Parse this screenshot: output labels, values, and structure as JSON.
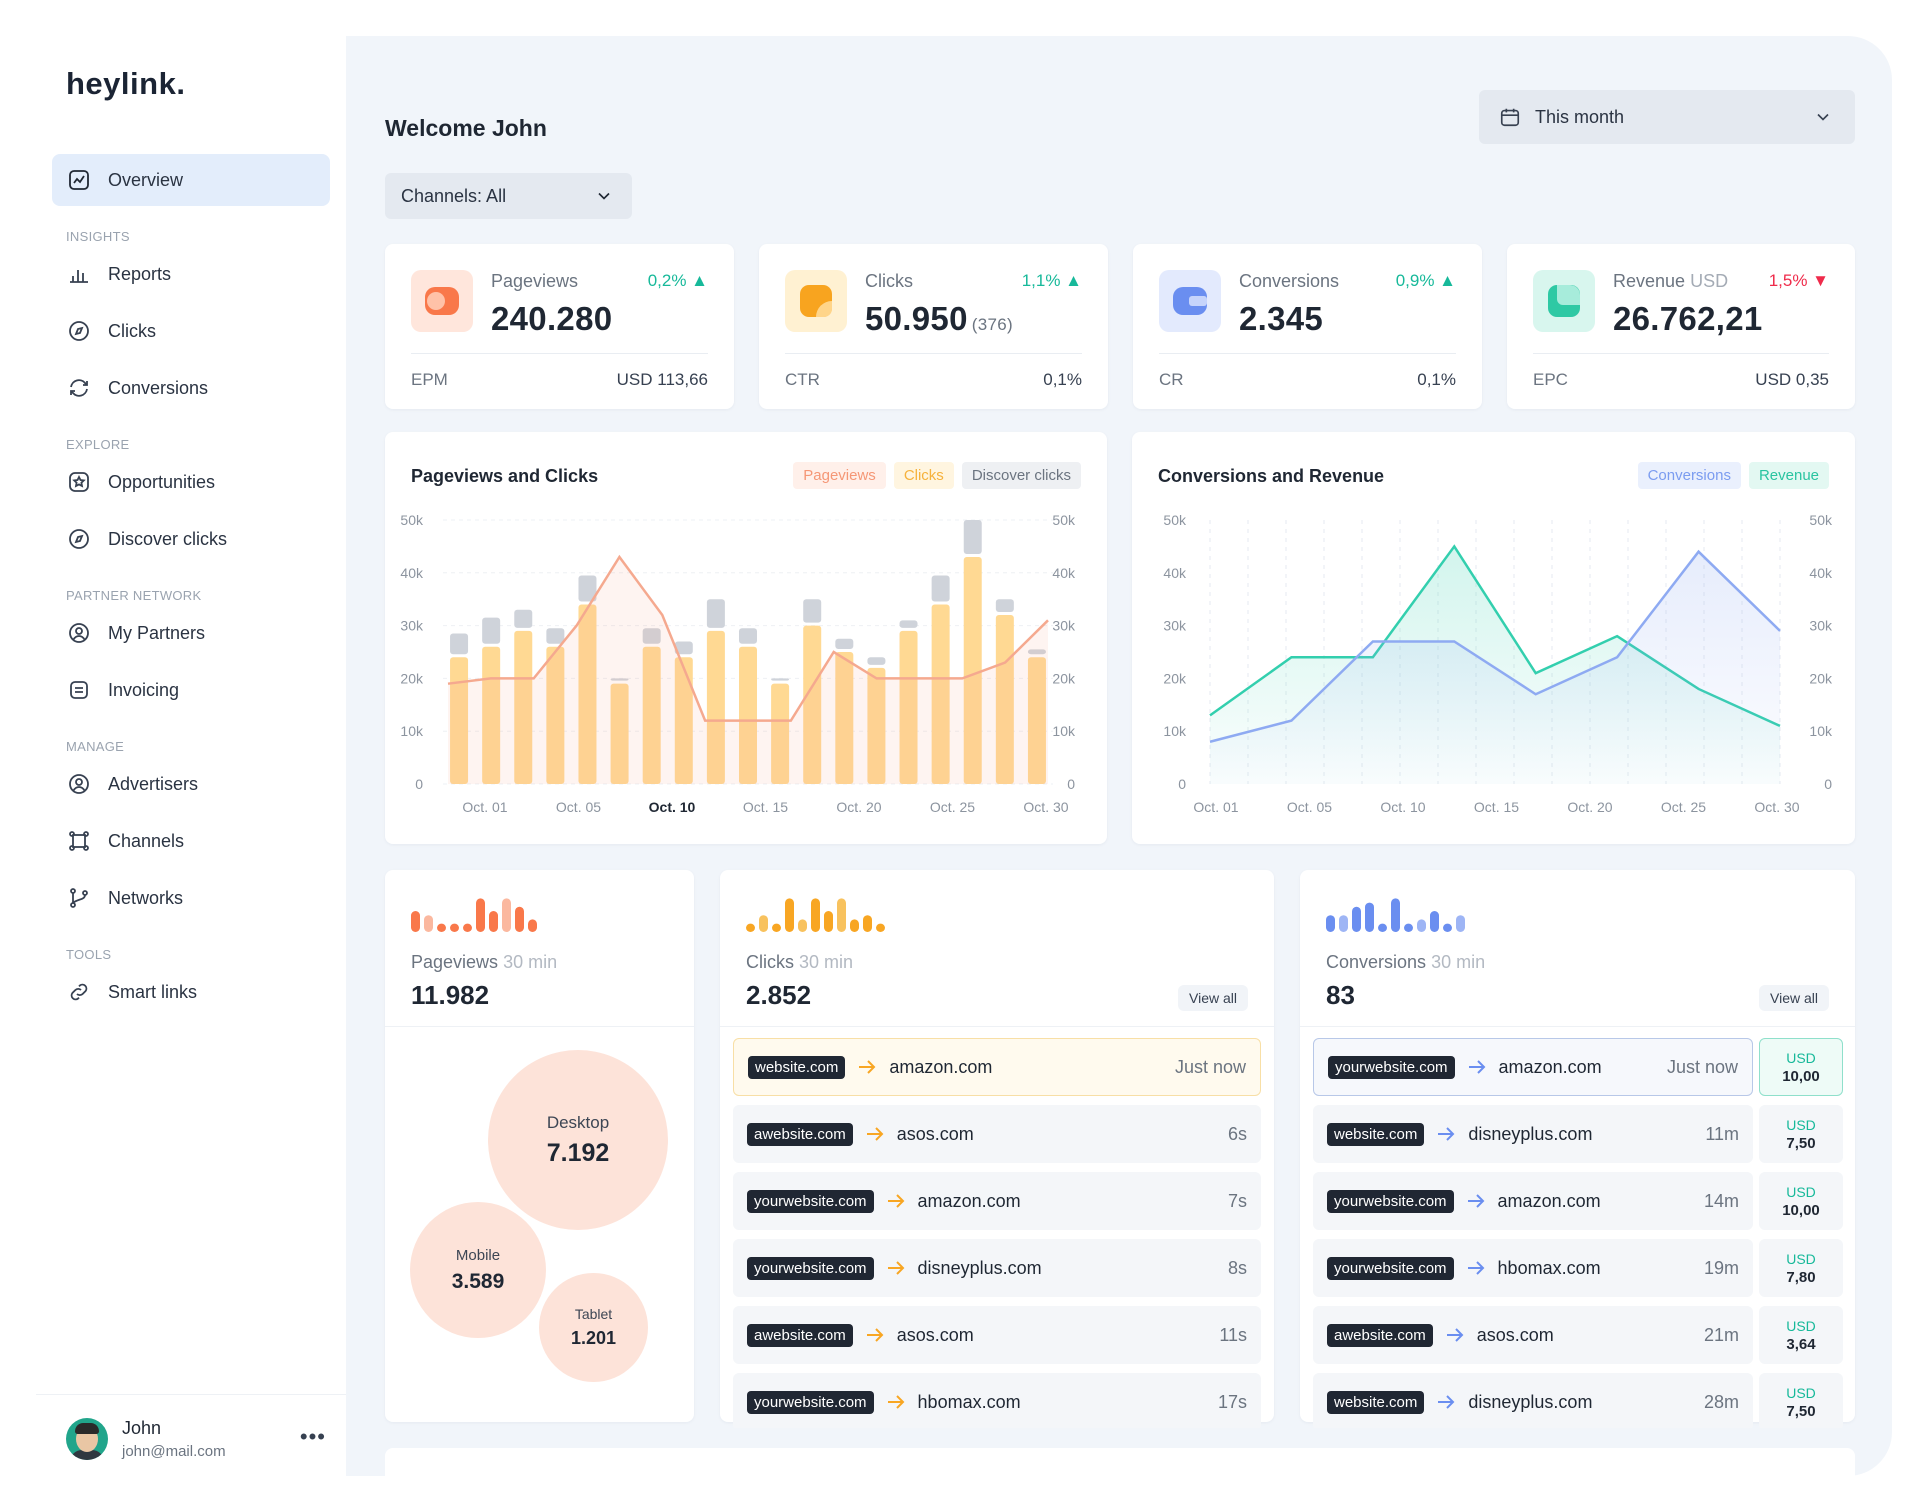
{
  "brand": "heylink.",
  "sidebar": {
    "overview": "Overview",
    "sections": {
      "insights": "INSIGHTS",
      "explore": "EXPLORE",
      "partner_network": "PARTNER NETWORK",
      "manage": "MANAGE",
      "tools": "TOOLS"
    },
    "items": {
      "reports": "Reports",
      "clicks": "Clicks",
      "conversions": "Conversions",
      "opportunities": "Opportunities",
      "discover_clicks": "Discover clicks",
      "my_partners": "My Partners",
      "invoicing": "Invoicing",
      "advertisers": "Advertisers",
      "channels": "Channels",
      "networks": "Networks",
      "smart_links": "Smart links"
    }
  },
  "user": {
    "name": "John",
    "email": "john@mail.com"
  },
  "header": {
    "welcome": "Welcome John",
    "channels_filter": "Channels: All",
    "date_range": "This month"
  },
  "kpis": {
    "pageviews": {
      "label": "Pageviews",
      "value": "240.280",
      "change": "0,2%",
      "sub_label": "EPM",
      "sub_value": "USD 113,66",
      "color": "#f97b4e"
    },
    "clicks": {
      "label": "Clicks",
      "value": "50.950",
      "value_extra": "(376)",
      "change": "1,1%",
      "sub_label": "CTR",
      "sub_value": "0,1%",
      "color": "#f8a623"
    },
    "conversions": {
      "label": "Conversions",
      "value": "2.345",
      "change": "0,9%",
      "sub_label": "CR",
      "sub_value": "0,1%",
      "color": "#6a8ef0"
    },
    "revenue": {
      "label": "Revenue",
      "label_unit": "USD",
      "value": "26.762,21",
      "change": "1,5%",
      "sub_label": "EPC",
      "sub_value": "USD 0,35",
      "color": "#2ec9a4"
    }
  },
  "chart_data": [
    {
      "type": "bar",
      "title": "Pageviews and Clicks",
      "legend": [
        "Pageviews",
        "Clicks",
        "Discover clicks"
      ],
      "y_ticks": [
        "50k",
        "40k",
        "30k",
        "20k",
        "10k",
        "0"
      ],
      "x_ticks": [
        "Oct. 01",
        "Oct. 05",
        "Oct. 10",
        "Oct. 15",
        "Oct. 20",
        "Oct. 25",
        "Oct. 30"
      ],
      "x_tick_active": "Oct. 10",
      "ylim": [
        0,
        50000
      ],
      "series": [
        {
          "name": "Clicks",
          "values": [
            24000,
            26000,
            29000,
            26000,
            34000,
            19000,
            26000,
            24000,
            29000,
            26000,
            19000,
            30000,
            25000,
            22000,
            29000,
            34000,
            43000,
            32000,
            24000
          ]
        },
        {
          "name": "Discover clicks",
          "values": [
            28500,
            31500,
            33000,
            29500,
            39500,
            20000,
            29500,
            27000,
            35000,
            29500,
            20000,
            35000,
            27500,
            24000,
            31000,
            39500,
            50000,
            35000,
            25500
          ]
        },
        {
          "name": "Pageviews",
          "values": [
            19000,
            20000,
            20000,
            30000,
            43000,
            32000,
            12000,
            12000,
            12000,
            25000,
            20000,
            20000,
            20000,
            23000,
            31000
          ]
        }
      ],
      "colors": {
        "Pageviews": "#f5a98f",
        "Clicks": "#ffd993",
        "Discover clicks": "#cfd3da"
      }
    },
    {
      "type": "line",
      "title": "Conversions and Revenue",
      "legend": [
        "Conversions",
        "Revenue"
      ],
      "y_ticks": [
        "50k",
        "40k",
        "30k",
        "20k",
        "10k",
        "0"
      ],
      "x_ticks": [
        "Oct. 01",
        "Oct. 05",
        "Oct. 10",
        "Oct. 15",
        "Oct. 20",
        "Oct. 25",
        "Oct. 30"
      ],
      "ylim": [
        0,
        50000
      ],
      "series": [
        {
          "name": "Revenue",
          "values": [
            13000,
            24000,
            24000,
            45000,
            21000,
            28000,
            18000,
            11000
          ]
        },
        {
          "name": "Conversions",
          "values": [
            8000,
            12000,
            27000,
            27000,
            17000,
            24000,
            44000,
            29000
          ]
        }
      ],
      "colors": {
        "Conversions": "#8eaaf2",
        "Revenue": "#33cfae"
      }
    }
  ],
  "realtime": {
    "pageviews": {
      "label": "Pageviews",
      "window": "30 min",
      "value": "11.982",
      "spark": [
        5,
        4,
        2,
        2,
        2,
        8,
        5,
        8,
        6,
        3
      ],
      "devices": [
        {
          "label": "Desktop",
          "value": "7.192"
        },
        {
          "label": "Mobile",
          "value": "3.589"
        },
        {
          "label": "Tablet",
          "value": "1.201"
        }
      ]
    },
    "clicks": {
      "label": "Clicks",
      "window": "30 min",
      "value": "2.852",
      "view_all": "View all",
      "spark": [
        2,
        4,
        2,
        8,
        3,
        8,
        5,
        8,
        3,
        4,
        2
      ],
      "rows": [
        {
          "source": "website.com",
          "target": "amazon.com",
          "time": "Just now"
        },
        {
          "source": "awebsite.com",
          "target": "asos.com",
          "time": "6s"
        },
        {
          "source": "yourwebsite.com",
          "target": "amazon.com",
          "time": "7s"
        },
        {
          "source": "yourwebsite.com",
          "target": "disneyplus.com",
          "time": "8s"
        },
        {
          "source": "awebsite.com",
          "target": "asos.com",
          "time": "11s"
        },
        {
          "source": "yourwebsite.com",
          "target": "hbomax.com",
          "time": "17s"
        }
      ]
    },
    "conversions": {
      "label": "Conversions",
      "window": "30 min",
      "value": "83",
      "view_all": "View all",
      "spark": [
        4,
        4,
        6,
        7,
        2,
        8,
        2,
        3,
        5,
        2,
        4
      ],
      "rows": [
        {
          "source": "yourwebsite.com",
          "target": "amazon.com",
          "time": "Just now",
          "currency": "USD",
          "amount": "10,00"
        },
        {
          "source": "website.com",
          "target": "disneyplus.com",
          "time": "11m",
          "currency": "USD",
          "amount": "7,50"
        },
        {
          "source": "yourwebsite.com",
          "target": "amazon.com",
          "time": "14m",
          "currency": "USD",
          "amount": "10,00"
        },
        {
          "source": "yourwebsite.com",
          "target": "hbomax.com",
          "time": "19m",
          "currency": "USD",
          "amount": "7,80"
        },
        {
          "source": "awebsite.com",
          "target": "asos.com",
          "time": "21m",
          "currency": "USD",
          "amount": "3,64"
        },
        {
          "source": "website.com",
          "target": "disneyplus.com",
          "time": "28m",
          "currency": "USD",
          "amount": "7,50"
        }
      ]
    }
  }
}
